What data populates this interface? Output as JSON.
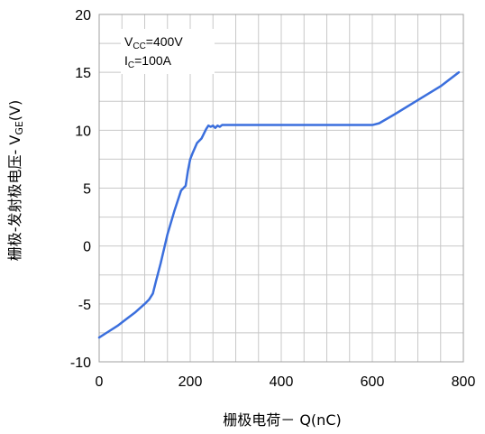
{
  "chart_data": {
    "type": "line",
    "title": "",
    "xlabel": "栅极电荷－ Q(nC)",
    "ylabel_main": "栅极-发射极电压- V",
    "ylabel_sub": "GE",
    "ylabel_unit": "(V)",
    "xlim": [
      0,
      800
    ],
    "ylim": [
      -10,
      20
    ],
    "x_ticks": [
      "0",
      "200",
      "400",
      "600",
      "800"
    ],
    "y_ticks": [
      "-10",
      "-5",
      "0",
      "5",
      "10",
      "15",
      "20"
    ],
    "x_minor_step": 50,
    "y_minor_step": 2.5,
    "grid": true,
    "line_color": "#3b6fdd",
    "annotation": {
      "vcc_main": "V",
      "vcc_sub": "CC",
      "vcc_value": "=400V",
      "ic_main": "I",
      "ic_sub": "C",
      "ic_value": "=100A"
    },
    "series": [
      {
        "x": [
          0,
          20,
          40,
          60,
          80,
          100,
          110,
          118,
          125,
          135,
          150,
          165,
          180,
          190,
          195,
          200,
          205,
          215,
          225,
          235,
          240,
          245,
          250,
          255,
          260,
          265,
          270,
          300,
          400,
          500,
          600,
          615,
          650,
          700,
          750,
          790
        ],
        "y": [
          -7.9,
          -7.4,
          -6.9,
          -6.3,
          -5.7,
          -5.0,
          -4.6,
          -4.1,
          -3.0,
          -1.5,
          1.0,
          3.0,
          4.8,
          5.2,
          6.5,
          7.5,
          8.0,
          8.9,
          9.3,
          10.1,
          10.4,
          10.3,
          10.4,
          10.2,
          10.4,
          10.3,
          10.45,
          10.45,
          10.45,
          10.45,
          10.45,
          10.6,
          11.4,
          12.6,
          13.8,
          15.0
        ]
      }
    ]
  }
}
